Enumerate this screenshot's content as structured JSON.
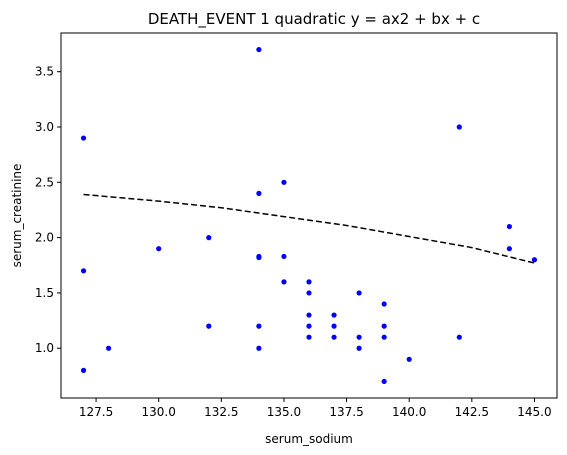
{
  "chart_data": {
    "type": "scatter",
    "title": "DEATH_EVENT 1 quadratic y = ax2 + bx + c",
    "xlabel": "serum_sodium",
    "ylabel": "serum_creatinine",
    "xlim": [
      126.1,
      145.9
    ],
    "ylim": [
      0.55,
      3.85
    ],
    "grid": false,
    "x_ticks": [
      127.5,
      130.0,
      132.5,
      135.0,
      137.5,
      140.0,
      142.5,
      145.0
    ],
    "x_tick_labels": [
      "127.5",
      "130.0",
      "132.5",
      "135.0",
      "137.5",
      "140.0",
      "142.5",
      "145.0"
    ],
    "y_ticks": [
      1.0,
      1.5,
      2.0,
      2.5,
      3.0,
      3.5
    ],
    "y_tick_labels": [
      "1.0",
      "1.5",
      "2.0",
      "2.5",
      "3.0",
      "3.5"
    ],
    "series": [
      {
        "kind": "points",
        "color": "#0000ff",
        "points": [
          [
            127,
            2.9
          ],
          [
            127,
            1.7
          ],
          [
            127,
            0.8
          ],
          [
            128,
            1.0
          ],
          [
            130,
            1.9
          ],
          [
            132,
            2.0
          ],
          [
            132,
            1.2
          ],
          [
            134,
            3.7
          ],
          [
            134,
            2.4
          ],
          [
            134,
            1.83
          ],
          [
            134,
            1.82
          ],
          [
            134,
            1.2
          ],
          [
            134,
            1.0
          ],
          [
            135,
            2.5
          ],
          [
            135,
            1.83
          ],
          [
            135,
            1.6
          ],
          [
            136,
            1.6
          ],
          [
            136,
            1.5
          ],
          [
            136,
            1.3
          ],
          [
            136,
            1.2
          ],
          [
            136,
            1.1
          ],
          [
            137,
            1.3
          ],
          [
            137,
            1.2
          ],
          [
            137,
            1.1
          ],
          [
            138,
            1.5
          ],
          [
            138,
            1.1
          ],
          [
            138,
            1.0
          ],
          [
            139,
            1.4
          ],
          [
            139,
            1.2
          ],
          [
            139,
            1.1
          ],
          [
            139,
            0.7
          ],
          [
            140,
            0.9
          ],
          [
            142,
            3.0
          ],
          [
            142,
            1.1
          ],
          [
            144,
            2.1
          ],
          [
            144,
            1.9
          ],
          [
            145,
            1.8
          ]
        ]
      },
      {
        "kind": "fit-line",
        "color": "#000000",
        "style": "dashed",
        "x": [
          127,
          130,
          132.5,
          135,
          137.5,
          140,
          142.5,
          145
        ],
        "y": [
          2.39,
          2.33,
          2.27,
          2.19,
          2.11,
          2.01,
          1.91,
          1.77
        ]
      }
    ]
  }
}
